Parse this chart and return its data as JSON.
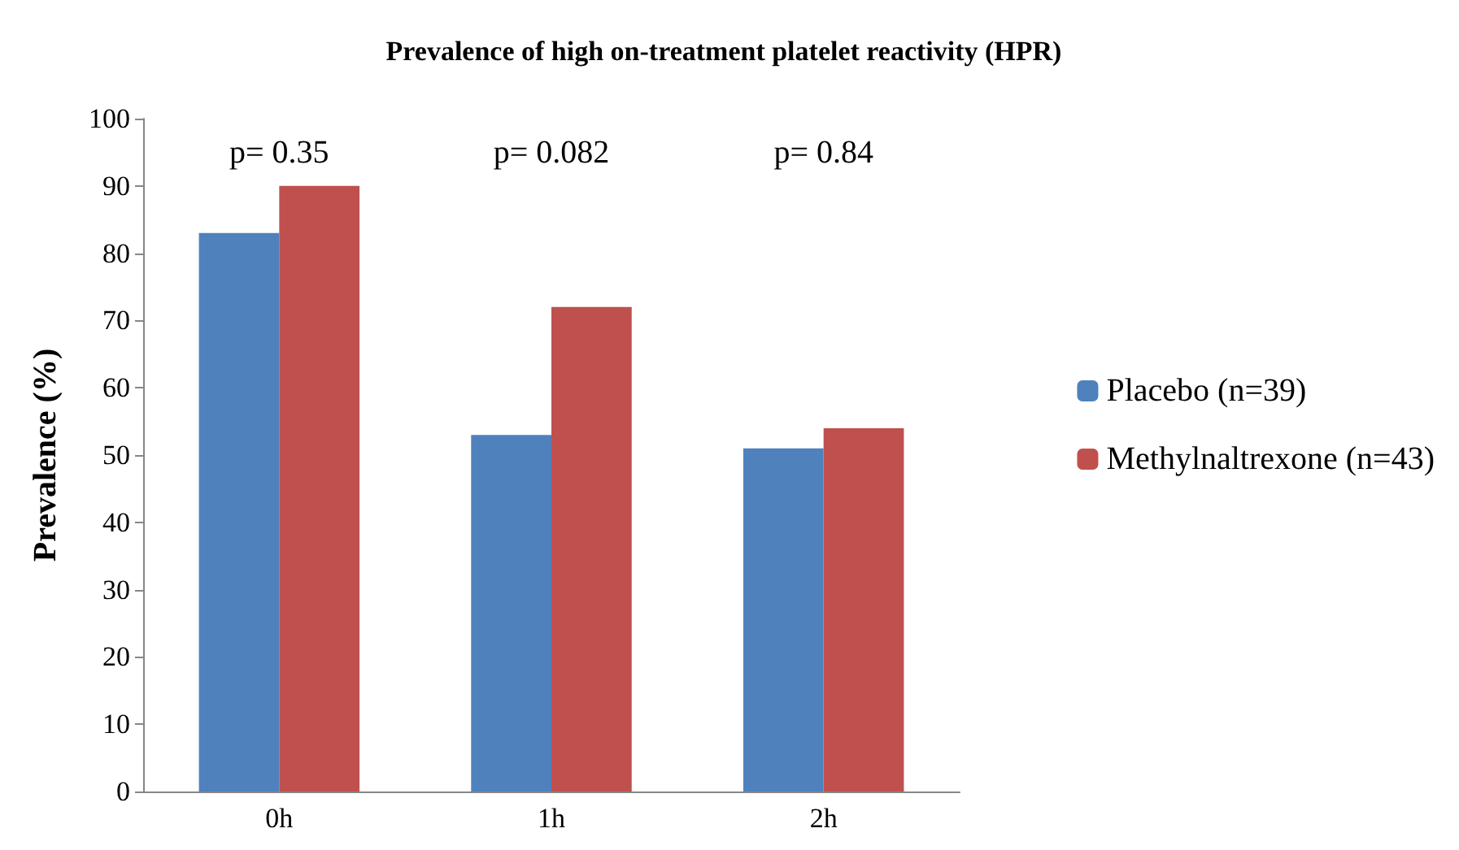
{
  "chart_data": {
    "type": "bar",
    "title": "Prevalence of high on-treatment platelet reactivity (HPR)",
    "ylabel": "Prevalence (%)",
    "categories": [
      "0h",
      "1h",
      "2h"
    ],
    "series": [
      {
        "name": "Placebo (n=39)",
        "color": "#4f81bd",
        "values": [
          83,
          53,
          51
        ]
      },
      {
        "name": "Methylnaltrexone (n=43)",
        "color": "#c0504d",
        "values": [
          90,
          72,
          54
        ]
      }
    ],
    "ylim": [
      0,
      100
    ],
    "yticks": [
      0,
      10,
      20,
      30,
      40,
      50,
      60,
      70,
      80,
      90,
      100
    ],
    "grid": false,
    "legend": "right",
    "annotations": [
      "p= 0.35",
      "p= 0.082",
      "p= 0.84"
    ]
  }
}
